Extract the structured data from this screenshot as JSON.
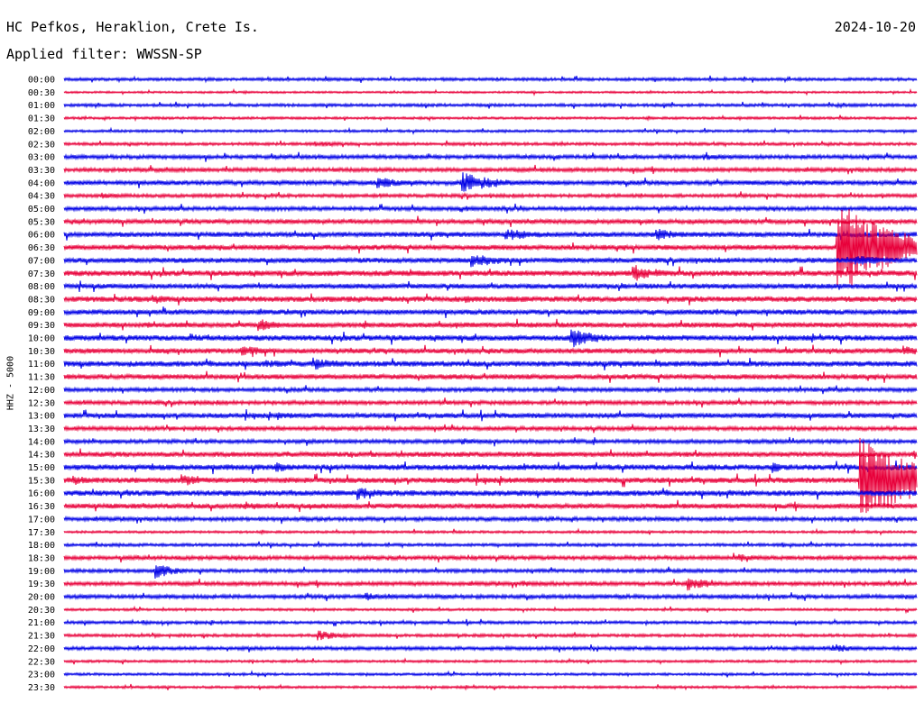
{
  "header": {
    "station": "HC Pefkos, Heraklion, Crete Is.",
    "date": "2024-10-20",
    "filter": "Applied filter: WWSSN-SP"
  },
  "chart_data": {
    "type": "line",
    "title": "HC Pefkos, Heraklion, Crete Is.",
    "ylabel": "HHZ - 5000",
    "rows": [
      "00:00",
      "00:30",
      "01:00",
      "01:30",
      "02:00",
      "02:30",
      "03:00",
      "03:30",
      "04:00",
      "04:30",
      "05:00",
      "05:30",
      "06:00",
      "06:30",
      "07:00",
      "07:30",
      "08:00",
      "08:30",
      "09:00",
      "09:30",
      "10:00",
      "10:30",
      "11:00",
      "11:30",
      "12:00",
      "12:30",
      "13:00",
      "13:30",
      "14:00",
      "14:30",
      "15:00",
      "15:30",
      "16:00",
      "16:30",
      "17:00",
      "17:30",
      "18:00",
      "18:30",
      "19:00",
      "19:30",
      "20:00",
      "20:30",
      "21:00",
      "21:30",
      "22:00",
      "22:30",
      "23:00",
      "23:30"
    ],
    "row_minutes": 30,
    "colors": [
      "#0000e6",
      "#e8003a"
    ],
    "noise": [
      1.2,
      0.8,
      1.2,
      1.0,
      1.0,
      1.2,
      1.6,
      1.6,
      1.8,
      1.4,
      1.6,
      1.8,
      2.0,
      2.0,
      2.0,
      2.2,
      2.0,
      2.2,
      2.0,
      2.0,
      2.2,
      2.0,
      2.2,
      2.0,
      1.6,
      1.6,
      2.0,
      1.6,
      1.6,
      2.0,
      2.2,
      2.2,
      2.2,
      2.0,
      1.6,
      1.0,
      1.2,
      1.6,
      1.4,
      1.6,
      1.6,
      1.0,
      1.2,
      1.2,
      1.4,
      1.0,
      1.0,
      1.0
    ],
    "events": [
      {
        "row": 0,
        "minute": 9.2,
        "amplitude": 2,
        "duration": 0.6
      },
      {
        "row": 1,
        "minute": 6.3,
        "amplitude": 2,
        "duration": 0.5
      },
      {
        "row": 1,
        "minute": 24.5,
        "amplitude": 2,
        "duration": 0.5
      },
      {
        "row": 2,
        "minute": 27.2,
        "amplitude": 3,
        "duration": 1.0
      },
      {
        "row": 5,
        "minute": 9.0,
        "amplitude": 3,
        "duration": 1.4
      },
      {
        "row": 6,
        "minute": 22.5,
        "amplitude": 4,
        "duration": 1.6
      },
      {
        "row": 8,
        "minute": 11.0,
        "amplitude": 7,
        "duration": 1.0
      },
      {
        "row": 8,
        "minute": 14.0,
        "amplitude": 12,
        "duration": 1.2
      },
      {
        "row": 9,
        "minute": 1.3,
        "amplitude": 4,
        "duration": 1.0
      },
      {
        "row": 10,
        "minute": 14.0,
        "amplitude": 4,
        "duration": 0.8
      },
      {
        "row": 12,
        "minute": 15.5,
        "amplitude": 7,
        "duration": 1.6
      },
      {
        "row": 12,
        "minute": 20.8,
        "amplitude": 8,
        "duration": 1.0
      },
      {
        "row": 13,
        "minute": 27.2,
        "amplitude": 55,
        "duration": 2.0
      },
      {
        "row": 14,
        "minute": 14.3,
        "amplitude": 8,
        "duration": 1.4
      },
      {
        "row": 14,
        "minute": 27.8,
        "amplitude": 6,
        "duration": 1.4
      },
      {
        "row": 15,
        "minute": 20.0,
        "amplitude": 12,
        "duration": 0.6
      },
      {
        "row": 15,
        "minute": 20.8,
        "amplitude": 5,
        "duration": 0.8
      },
      {
        "row": 17,
        "minute": 3.1,
        "amplitude": 6,
        "duration": 0.8
      },
      {
        "row": 17,
        "minute": 14.1,
        "amplitude": 5,
        "duration": 0.8
      },
      {
        "row": 18,
        "minute": 2.5,
        "amplitude": 3,
        "duration": 1.2
      },
      {
        "row": 19,
        "minute": 2.9,
        "amplitude": 4,
        "duration": 0.6
      },
      {
        "row": 19,
        "minute": 6.8,
        "amplitude": 8,
        "duration": 0.8
      },
      {
        "row": 19,
        "minute": 29.8,
        "amplitude": 3,
        "duration": 0.4
      },
      {
        "row": 20,
        "minute": 4.4,
        "amplitude": 6,
        "duration": 0.6
      },
      {
        "row": 20,
        "minute": 17.8,
        "amplitude": 12,
        "duration": 1.0
      },
      {
        "row": 21,
        "minute": 6.2,
        "amplitude": 7,
        "duration": 1.0
      },
      {
        "row": 21,
        "minute": 29.5,
        "amplitude": 6,
        "duration": 1.0
      },
      {
        "row": 22,
        "minute": 7.0,
        "amplitude": 5,
        "duration": 1.4
      },
      {
        "row": 22,
        "minute": 8.8,
        "amplitude": 7,
        "duration": 1.4
      },
      {
        "row": 22,
        "minute": 20.8,
        "amplitude": 5,
        "duration": 0.8
      },
      {
        "row": 26,
        "minute": 7.5,
        "amplitude": 5,
        "duration": 1.0
      },
      {
        "row": 28,
        "minute": 14.0,
        "amplitude": 4,
        "duration": 0.8
      },
      {
        "row": 30,
        "minute": 7.4,
        "amplitude": 6,
        "duration": 1.0
      },
      {
        "row": 30,
        "minute": 16.0,
        "amplitude": 5,
        "duration": 0.3
      },
      {
        "row": 30,
        "minute": 24.9,
        "amplitude": 8,
        "duration": 0.4
      },
      {
        "row": 31,
        "minute": 0.3,
        "amplitude": 6,
        "duration": 0.8
      },
      {
        "row": 31,
        "minute": 4.1,
        "amplitude": 8,
        "duration": 0.8
      },
      {
        "row": 31,
        "minute": 28.0,
        "amplitude": 48,
        "duration": 2.2
      },
      {
        "row": 32,
        "minute": 10.3,
        "amplitude": 8,
        "duration": 1.0
      },
      {
        "row": 33,
        "minute": 6.3,
        "amplitude": 6,
        "duration": 0.8
      },
      {
        "row": 37,
        "minute": 23.7,
        "amplitude": 5,
        "duration": 1.0
      },
      {
        "row": 38,
        "minute": 3.2,
        "amplitude": 9,
        "duration": 0.8
      },
      {
        "row": 39,
        "minute": 16.1,
        "amplitude": 4,
        "duration": 0.8
      },
      {
        "row": 39,
        "minute": 21.9,
        "amplitude": 8,
        "duration": 1.0
      },
      {
        "row": 40,
        "minute": 10.6,
        "amplitude": 6,
        "duration": 0.6
      },
      {
        "row": 40,
        "minute": 11.4,
        "amplitude": 4,
        "duration": 0.6
      },
      {
        "row": 42,
        "minute": 2.7,
        "amplitude": 3,
        "duration": 0.6
      },
      {
        "row": 43,
        "minute": 8.9,
        "amplitude": 6,
        "duration": 1.0
      },
      {
        "row": 44,
        "minute": 27.0,
        "amplitude": 6,
        "duration": 0.8
      },
      {
        "row": 45,
        "minute": 3.0,
        "amplitude": 2,
        "duration": 0.8
      },
      {
        "row": 47,
        "minute": 6.0,
        "amplitude": 2,
        "duration": 0.5
      }
    ]
  }
}
